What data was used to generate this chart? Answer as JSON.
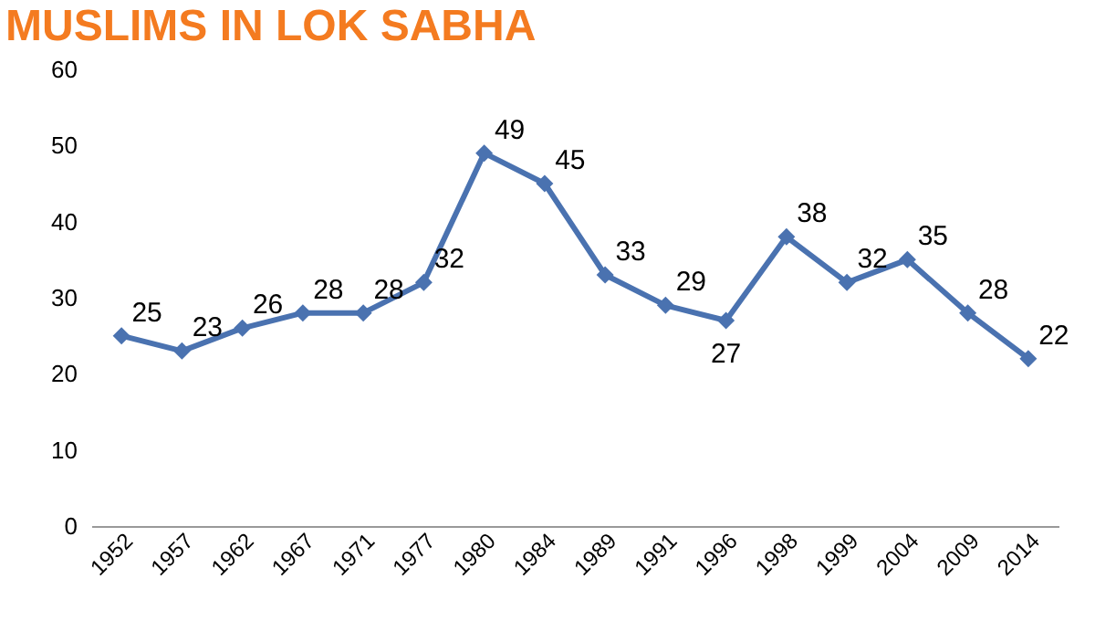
{
  "chart_data": {
    "type": "line",
    "title": "MUSLIMS IN LOK SABHA",
    "categories": [
      "1952",
      "1957",
      "1962",
      "1967",
      "1971",
      "1977",
      "1980",
      "1984",
      "1989",
      "1991",
      "1996",
      "1998",
      "1999",
      "2004",
      "2009",
      "2014"
    ],
    "series": [
      {
        "color": "#4a72b0",
        "values": [
          25,
          23,
          26,
          28,
          28,
          32,
          49,
          45,
          33,
          29,
          27,
          38,
          32,
          35,
          28,
          22
        ]
      }
    ],
    "ylim": [
      0,
      60
    ],
    "yticks": [
      0,
      10,
      20,
      30,
      40,
      50,
      60
    ],
    "grid": false,
    "marker": "diamond",
    "line_style": "solid",
    "data_labels": true
  }
}
